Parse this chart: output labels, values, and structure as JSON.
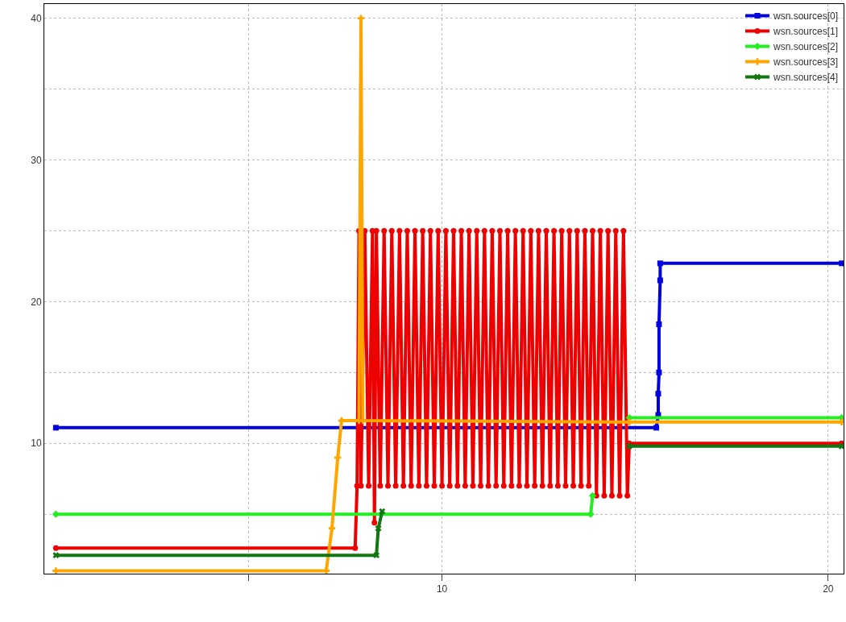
{
  "chart_data": {
    "type": "line",
    "grid": true,
    "legend": "top right",
    "line_style": "solid",
    "xlim": [
      -0.3,
      20.4
    ],
    "xticks": [
      {
        "value": 5,
        "label": null
      },
      10,
      {
        "value": 15,
        "label": null
      },
      20
    ],
    "ylim": [
      0.8,
      41
    ],
    "yticks": [
      {
        "value": 5,
        "label": null
      },
      10,
      {
        "value": 15,
        "label": null
      },
      20,
      {
        "value": 25,
        "label": null
      },
      30,
      {
        "value": 35,
        "label": null
      },
      40
    ],
    "series": [
      {
        "name": "wsn.sources[0]",
        "color": "#0000dd",
        "marker": "square",
        "x": [
          0,
          15.55,
          15.6,
          15.6,
          15.62,
          15.62,
          15.65,
          15.65,
          20.35
        ],
        "values": [
          11.1,
          11.1,
          12,
          13.5,
          15,
          18.4,
          21.5,
          22.7,
          22.7
        ]
      },
      {
        "name": "wsn.sources[1]",
        "color": "#ee0000",
        "marker": "circle",
        "x": [
          0,
          7.75,
          7.8,
          7.85,
          7.9,
          8.0,
          8.1,
          8.2,
          8.25,
          8.3,
          8.4,
          8.5,
          8.6,
          8.7,
          8.8,
          8.9,
          9.0,
          9.1,
          9.2,
          9.3,
          9.4,
          9.5,
          9.6,
          9.7,
          9.8,
          9.9,
          10.0,
          10.1,
          10.2,
          10.3,
          10.4,
          10.5,
          10.6,
          10.7,
          10.8,
          10.9,
          11.0,
          11.1,
          11.2,
          11.3,
          11.4,
          11.5,
          11.6,
          11.7,
          11.8,
          11.9,
          12.0,
          12.1,
          12.2,
          12.3,
          12.4,
          12.5,
          12.6,
          12.7,
          12.8,
          12.9,
          13.0,
          13.1,
          13.2,
          13.3,
          13.4,
          13.5,
          13.6,
          13.7,
          13.8,
          13.9,
          14.0,
          14.1,
          14.2,
          14.3,
          14.4,
          14.5,
          14.6,
          14.7,
          14.8,
          14.85,
          20.35
        ],
        "values": [
          2.6,
          2.6,
          7,
          25,
          7,
          25,
          7,
          25,
          4.4,
          25,
          7,
          25,
          7,
          25,
          7,
          25,
          7,
          25,
          7,
          25,
          7,
          25,
          7,
          25,
          7,
          25,
          7,
          25,
          7,
          25,
          7,
          25,
          7,
          25,
          7,
          25,
          7,
          25,
          7,
          25,
          7,
          25,
          7,
          25,
          7,
          25,
          7,
          25,
          7,
          25,
          7,
          25,
          7,
          25,
          7,
          25,
          7,
          25,
          7,
          25,
          7,
          25,
          7,
          25,
          7,
          25,
          6.3,
          25,
          6.3,
          25,
          6.3,
          25,
          6.3,
          25,
          6.3,
          10,
          10
        ]
      },
      {
        "name": "wsn.sources[2]",
        "color": "#22ee22",
        "marker": "diamond",
        "x": [
          0,
          13.85,
          13.9,
          14.0,
          14.85,
          20.35
        ],
        "values": [
          5,
          5,
          6.3,
          null,
          11.8,
          11.8
        ]
      },
      {
        "name": "wsn.sources[3]",
        "color": "#ffa500",
        "marker": "cross",
        "x": [
          0,
          7.0,
          7.15,
          7.3,
          7.4,
          7.85,
          7.9,
          7.95,
          14.85,
          20.35
        ],
        "values": [
          1,
          1,
          4,
          9,
          11.6,
          11.6,
          40,
          11.6,
          11.5,
          11.5
        ]
      },
      {
        "name": "wsn.sources[4]",
        "color": "#117711",
        "marker": "x",
        "x": [
          0,
          8.3,
          8.35,
          8.45,
          8.5,
          14.85,
          20.35
        ],
        "values": [
          2.1,
          2.1,
          4,
          5.2,
          null,
          9.8,
          9.8
        ]
      }
    ]
  }
}
